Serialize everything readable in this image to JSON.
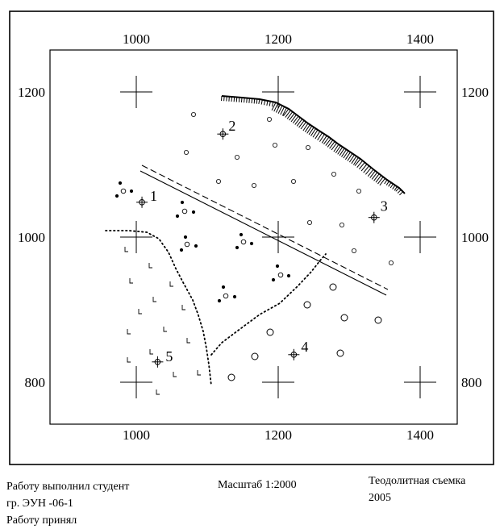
{
  "map": {
    "x_axis": {
      "min": 880,
      "max": 1440,
      "ticks": [
        1000,
        1200,
        1400
      ]
    },
    "y_axis": {
      "min": 738,
      "max": 1262,
      "ticks": [
        800,
        1000,
        1200
      ]
    },
    "tick_labels": {
      "top": [
        "1000",
        "1200",
        "1400"
      ],
      "bottom": [
        "1000",
        "1200",
        "1400"
      ],
      "left": [
        "1200",
        "1000",
        "800"
      ],
      "right": [
        "1200",
        "1000",
        "800"
      ]
    },
    "stations": [
      {
        "label": "1",
        "x": 1008,
        "y": 1048
      },
      {
        "label": "2",
        "x": 1122,
        "y": 1142
      },
      {
        "label": "3",
        "x": 1335,
        "y": 1027
      },
      {
        "label": "4",
        "x": 1222,
        "y": 838
      },
      {
        "label": "5",
        "x": 1030,
        "y": 828
      }
    ],
    "colors": {
      "ink": "#000000",
      "background": "#ffffff"
    }
  },
  "footer": {
    "line1": "Работу выполнил студент",
    "line2": "гр. ЭУН -06-1",
    "line3": "Работу принял",
    "scale": "Масштаб 1:2000",
    "title_line1": "Теодолитная съемка",
    "title_line2": "2005"
  }
}
